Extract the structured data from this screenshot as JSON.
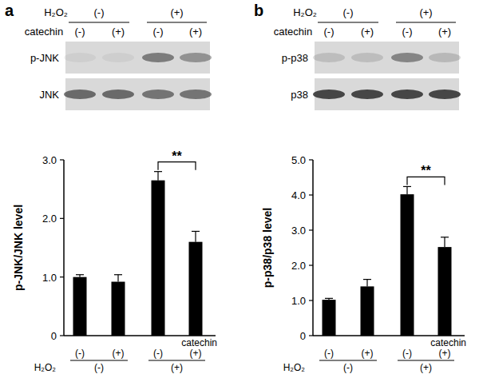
{
  "chart_data": [
    {
      "type": "bar",
      "title": "a",
      "y_label": "p-JNK/JNK level",
      "categories": [
        "(-)",
        "(+)",
        "(-)",
        "(+)"
      ],
      "category_label": "catechin",
      "group_label": "H₂O₂",
      "groups": [
        "(-)",
        "(+)"
      ],
      "values": [
        1.0,
        0.92,
        2.65,
        1.6
      ],
      "errors": [
        0.04,
        0.12,
        0.15,
        0.18
      ],
      "color": "#000000",
      "ylim": [
        0,
        3.0
      ],
      "yticks": [
        0,
        {
          "value": 1,
          "label": "1.0"
        },
        {
          "value": 2,
          "label": "2.0"
        },
        {
          "value": 3,
          "label": "3.0"
        }
      ],
      "significance": {
        "between": [
          2,
          3
        ],
        "label": "**"
      },
      "blot": {
        "header_label": "H₂O₂",
        "header_groups": [
          "(-)",
          "(+)"
        ],
        "lanes_label": "catechin",
        "lanes": [
          "(-)",
          "(+)",
          "(-)",
          "(+)"
        ],
        "rows": [
          {
            "label": "p-JNK",
            "bands": [
              0.06,
              0.06,
              0.5,
              0.38
            ]
          },
          {
            "label": "JNK",
            "bands": [
              0.6,
              0.6,
              0.55,
              0.55
            ]
          }
        ]
      }
    },
    {
      "type": "bar",
      "title": "b",
      "y_label": "p-p38/p38 level",
      "categories": [
        "(-)",
        "(+)",
        "(-)",
        "(+)"
      ],
      "category_label": "catechin",
      "group_label": "H₂O₂",
      "groups": [
        "(-)",
        "(+)"
      ],
      "values": [
        1.02,
        1.4,
        4.02,
        2.52
      ],
      "errors": [
        0.04,
        0.2,
        0.22,
        0.28
      ],
      "color": "#000000",
      "ylim": [
        0,
        5.0
      ],
      "yticks": [
        0,
        {
          "value": 1,
          "label": "1.0"
        },
        {
          "value": 2,
          "label": "2.0"
        },
        {
          "value": 3,
          "label": "3.0"
        },
        {
          "value": 4,
          "label": "4.0"
        },
        {
          "value": 5,
          "label": "5.0"
        }
      ],
      "significance": {
        "between": [
          2,
          3
        ],
        "label": "**"
      },
      "blot": {
        "header_label": "H₂O₂",
        "header_groups": [
          "(-)",
          "(+)"
        ],
        "lanes_label": "catechin",
        "lanes": [
          "(-)",
          "(+)",
          "(-)",
          "(+)"
        ],
        "rows": [
          {
            "label": "p-p38",
            "bands": [
              0.15,
              0.15,
              0.45,
              0.18
            ]
          },
          {
            "label": "p38",
            "bands": [
              0.8,
              0.8,
              0.8,
              0.8
            ]
          }
        ]
      }
    }
  ]
}
